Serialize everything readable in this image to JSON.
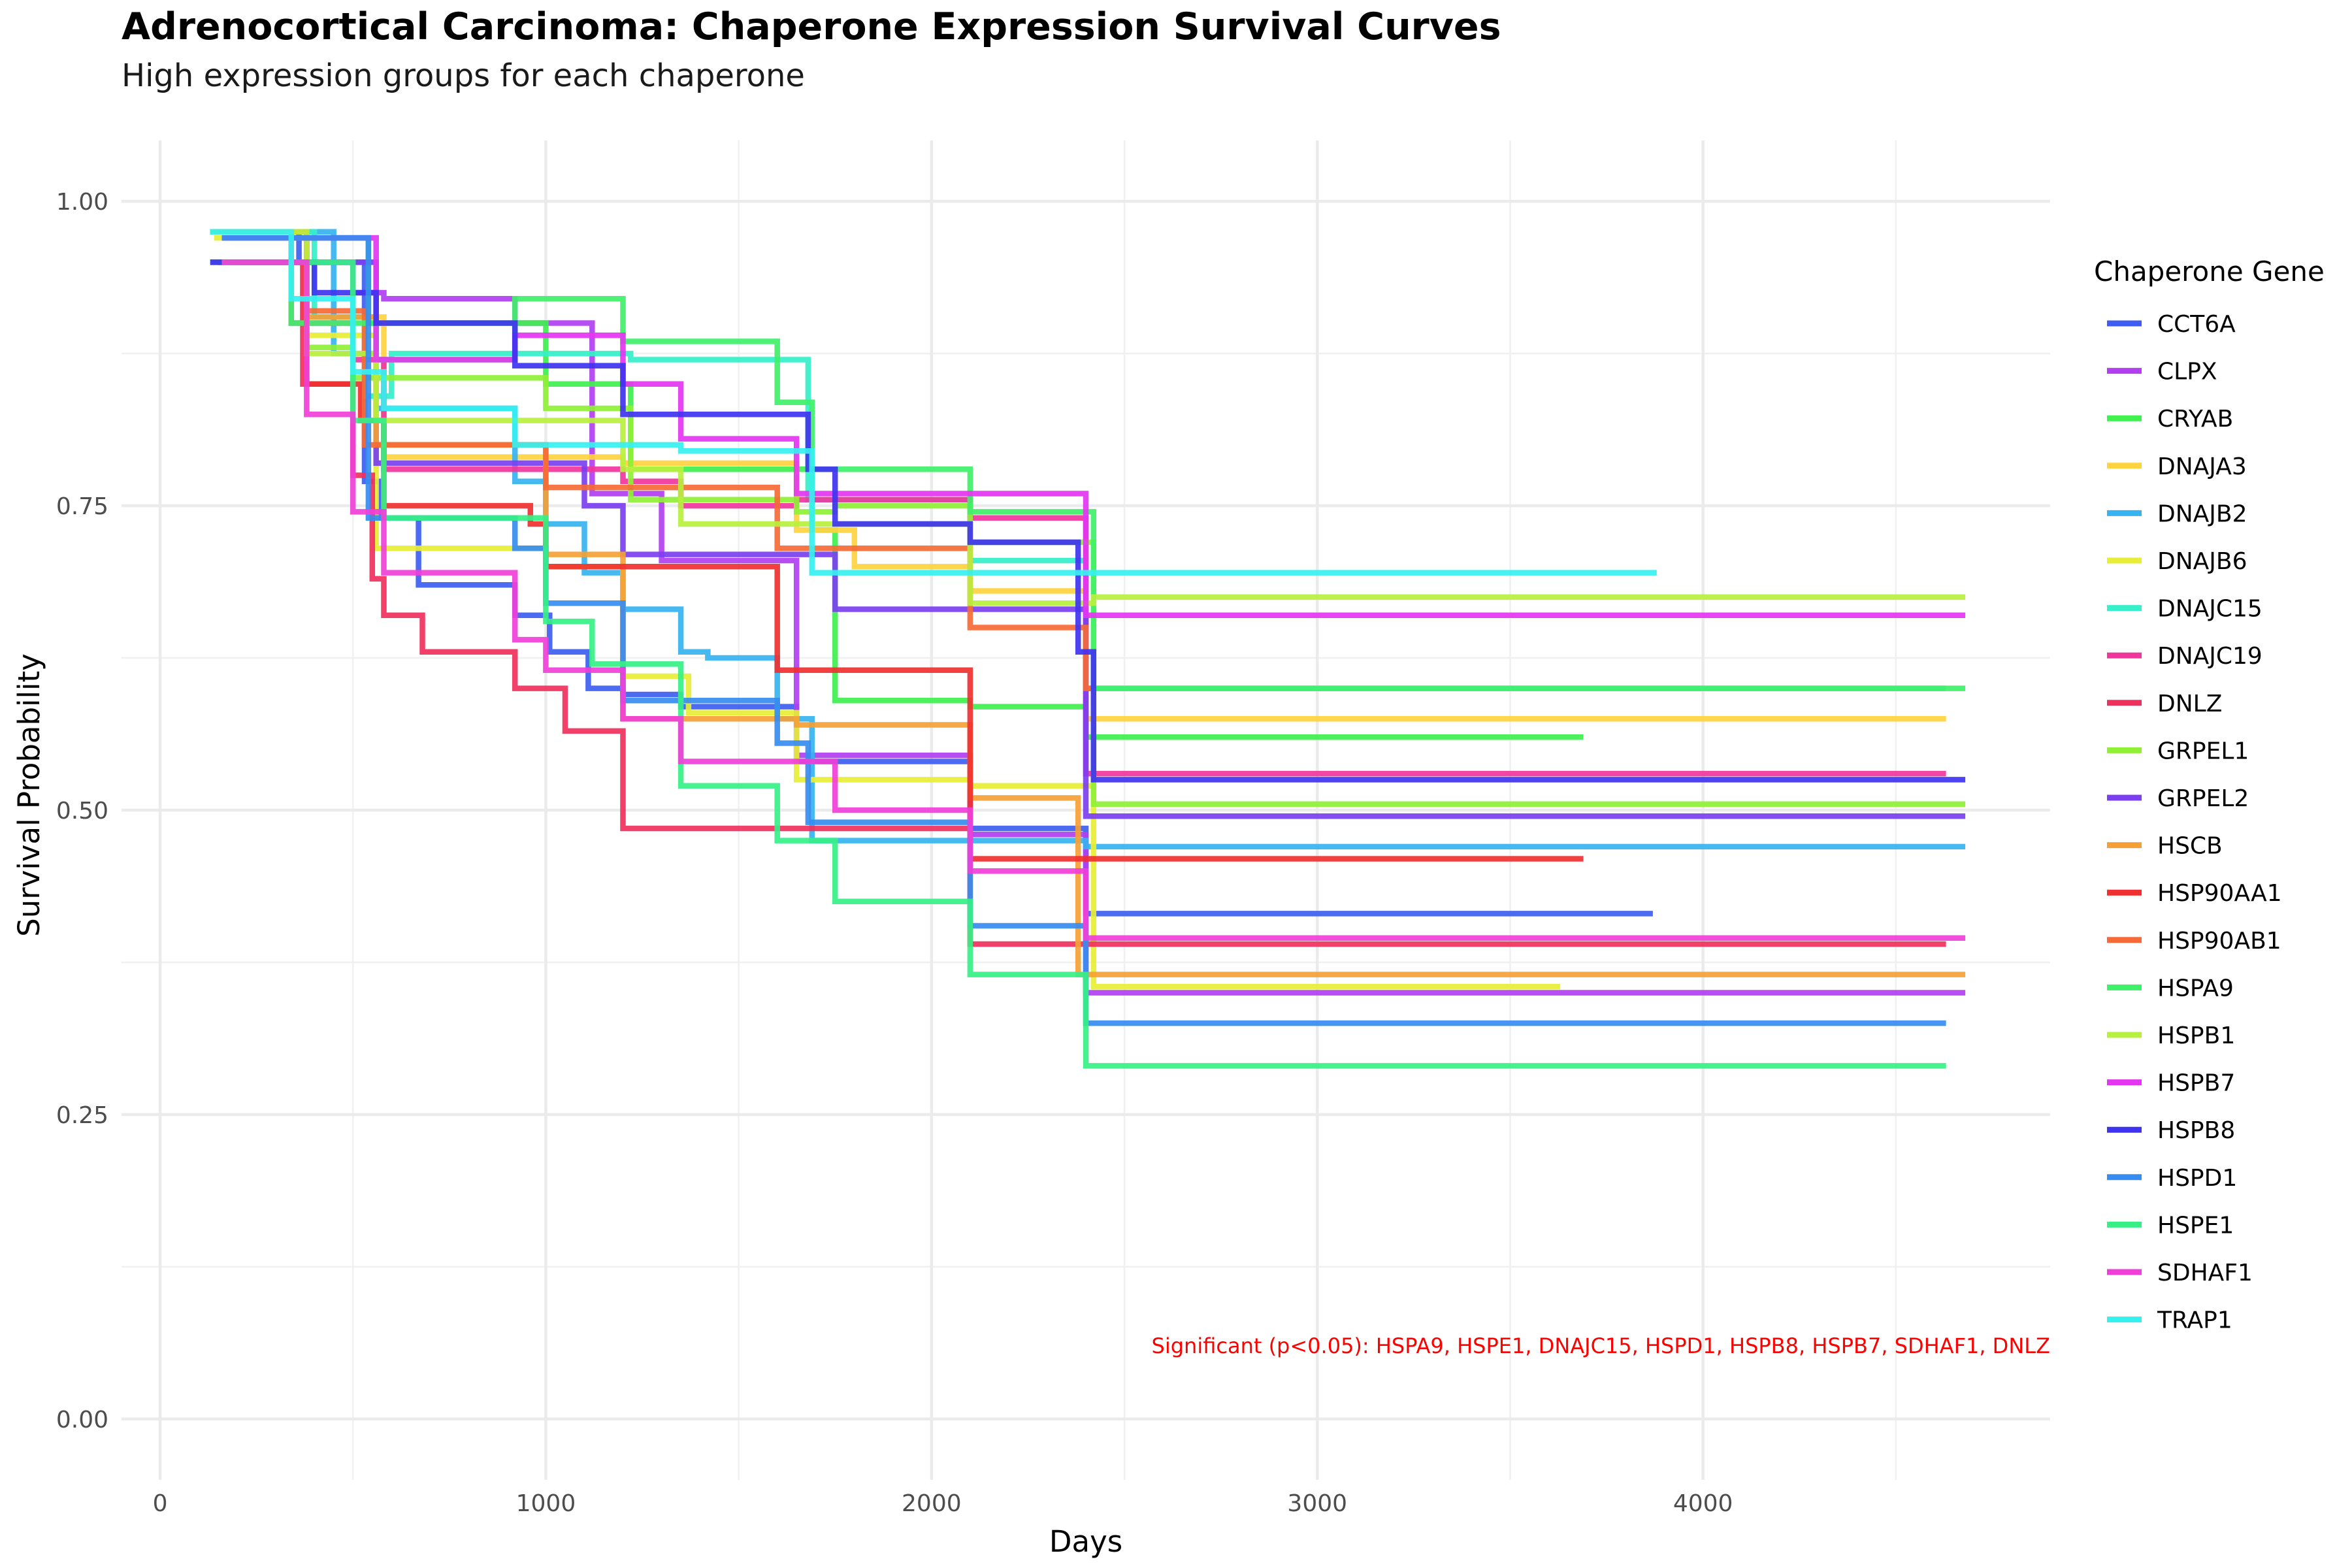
{
  "chart_data": {
    "type": "line",
    "step": true,
    "title": "Adrenocortical Carcinoma: Chaperone Expression Survival Curves",
    "subtitle": "High expression groups for each chaperone",
    "xlabel": "Days",
    "ylabel": "Survival Probability",
    "xlim": [
      -100,
      4900
    ],
    "ylim": [
      -0.05,
      1.05
    ],
    "x_ticks": [
      0,
      1000,
      2000,
      3000,
      4000
    ],
    "x_tick_labels": [
      "0",
      "1000",
      "2000",
      "3000",
      "4000"
    ],
    "y_ticks": [
      0,
      0.25,
      0.5,
      0.75,
      1
    ],
    "y_tick_labels": [
      "0.00",
      "0.25",
      "0.50",
      "0.75",
      "1.00"
    ],
    "grid": true,
    "legend": {
      "title": "Chaperone Gene",
      "position": "right"
    },
    "annotation": {
      "text": "Significant (p<0.05): HSPA9, HSPE1, DNAJC15, HSPD1, HSPB8, HSPB7, SDHAF1, DNLZ",
      "color": "#ff0000"
    },
    "series": [
      {
        "name": "CCT6A",
        "color": "#3d5ef0",
        "x": [
          130,
          360,
          530,
          570,
          670,
          920,
          1010,
          1110,
          1200,
          1350,
          1650,
          2100,
          2400,
          3870
        ],
        "y": [
          0.975,
          0.95,
          0.77,
          0.74,
          0.685,
          0.66,
          0.63,
          0.6,
          0.595,
          0.585,
          0.54,
          0.485,
          0.415,
          0.415
        ]
      },
      {
        "name": "CLPX",
        "color": "#b13ff0",
        "x": [
          150,
          500,
          580,
          920,
          1120,
          1300,
          1650,
          2100,
          2400,
          4680
        ],
        "y": [
          0.95,
          0.925,
          0.92,
          0.9,
          0.76,
          0.705,
          0.545,
          0.48,
          0.35,
          0.35
        ]
      },
      {
        "name": "CRYAB",
        "color": "#3ff04f",
        "x": [
          160,
          540,
          1000,
          1220,
          1690,
          1750,
          2100,
          2400,
          3690
        ],
        "y": [
          0.97,
          0.9,
          0.85,
          0.78,
          0.73,
          0.59,
          0.585,
          0.56,
          0.56
        ]
      },
      {
        "name": "DNAJA3",
        "color": "#ffd23f",
        "x": [
          200,
          370,
          580,
          1200,
          1650,
          1800,
          2100,
          2400,
          4630
        ],
        "y": [
          0.95,
          0.905,
          0.79,
          0.785,
          0.73,
          0.7,
          0.68,
          0.575,
          0.575
        ]
      },
      {
        "name": "DNAJB2",
        "color": "#36b3f0",
        "x": [
          140,
          450,
          560,
          920,
          1000,
          1100,
          1200,
          1350,
          1420,
          1600,
          1690,
          2100,
          2400,
          4680
        ],
        "y": [
          0.975,
          0.875,
          0.83,
          0.77,
          0.735,
          0.695,
          0.665,
          0.63,
          0.625,
          0.575,
          0.475,
          0.475,
          0.47,
          0.47
        ]
      },
      {
        "name": "DNAJB6",
        "color": "#e8ee36",
        "x": [
          140,
          380,
          560,
          1000,
          1200,
          1370,
          1650,
          2100,
          2420,
          3630
        ],
        "y": [
          0.97,
          0.89,
          0.715,
          0.7,
          0.61,
          0.58,
          0.525,
          0.52,
          0.355,
          0.355
        ]
      },
      {
        "name": "DNAJC15",
        "color": "#35f0c9",
        "x": [
          130,
          400,
          530,
          600,
          1220,
          1680,
          2100,
          2400,
          4630
        ],
        "y": [
          0.975,
          0.905,
          0.84,
          0.875,
          0.87,
          0.755,
          0.705,
          0.6,
          0.6
        ]
      },
      {
        "name": "DNAJC19",
        "color": "#f0369d",
        "x": [
          150,
          340,
          500,
          580,
          1200,
          1350,
          1650,
          2100,
          2400,
          4630
        ],
        "y": [
          0.975,
          0.9,
          0.87,
          0.78,
          0.77,
          0.75,
          0.755,
          0.74,
          0.53,
          0.53
        ]
      },
      {
        "name": "DNLZ",
        "color": "#f0305c",
        "x": [
          150,
          370,
          500,
          550,
          580,
          680,
          920,
          1050,
          1200,
          2100,
          2400,
          4630
        ],
        "y": [
          0.95,
          0.85,
          0.775,
          0.69,
          0.66,
          0.63,
          0.6,
          0.565,
          0.485,
          0.39,
          0.39,
          0.39
        ]
      },
      {
        "name": "GRPEL1",
        "color": "#8ff036",
        "x": [
          150,
          380,
          500,
          1000,
          1220,
          1650,
          1750,
          2100,
          2420,
          4680
        ],
        "y": [
          0.975,
          0.88,
          0.855,
          0.83,
          0.755,
          0.745,
          0.75,
          0.72,
          0.505,
          0.505
        ]
      },
      {
        "name": "GRPEL2",
        "color": "#7b3ff0",
        "x": [
          130,
          560,
          1100,
          1200,
          1650,
          1750,
          2100,
          2400,
          4680
        ],
        "y": [
          0.95,
          0.785,
          0.75,
          0.71,
          0.71,
          0.665,
          0.665,
          0.495,
          0.495
        ]
      },
      {
        "name": "HSCB",
        "color": "#f59f36",
        "x": [
          150,
          380,
          560,
          1000,
          1200,
          1650,
          2100,
          2380,
          2400,
          4680
        ],
        "y": [
          0.975,
          0.905,
          0.8,
          0.71,
          0.575,
          0.57,
          0.51,
          0.365,
          0.365,
          0.365
        ]
      },
      {
        "name": "HSP90AA1",
        "color": "#f03030",
        "x": [
          200,
          380,
          520,
          580,
          960,
          1000,
          1600,
          2100,
          2400,
          3690
        ],
        "y": [
          0.95,
          0.85,
          0.82,
          0.75,
          0.735,
          0.7,
          0.615,
          0.46,
          0.46,
          0.46
        ]
      },
      {
        "name": "HSP90AB1",
        "color": "#f56a36",
        "x": [
          130,
          380,
          530,
          1000,
          1400,
          1600,
          2100,
          2400,
          2420
        ],
        "y": [
          0.975,
          0.91,
          0.8,
          0.765,
          0.765,
          0.715,
          0.65,
          0.6,
          0.6
        ]
      },
      {
        "name": "HSPA9",
        "color": "#3ff06a",
        "x": [
          130,
          340,
          560,
          920,
          1200,
          1600,
          1690,
          2100,
          2420,
          4680
        ],
        "y": [
          0.95,
          0.9,
          0.87,
          0.92,
          0.885,
          0.835,
          0.78,
          0.745,
          0.6,
          0.6
        ]
      },
      {
        "name": "HSPB1",
        "color": "#b8f03f",
        "x": [
          130,
          380,
          560,
          920,
          1200,
          1350,
          1650,
          2100,
          2420,
          4680
        ],
        "y": [
          0.975,
          0.875,
          0.82,
          0.82,
          0.78,
          0.735,
          0.735,
          0.67,
          0.675,
          0.675
        ]
      },
      {
        "name": "HSPB7",
        "color": "#e436f0",
        "x": [
          160,
          560,
          920,
          1200,
          1350,
          1650,
          2400,
          4680
        ],
        "y": [
          0.97,
          0.87,
          0.89,
          0.85,
          0.805,
          0.76,
          0.66,
          0.66
        ]
      },
      {
        "name": "HSPB8",
        "color": "#3f33f0",
        "x": [
          130,
          400,
          560,
          920,
          1200,
          1680,
          1750,
          2100,
          2380,
          2420,
          4680
        ],
        "y": [
          0.95,
          0.925,
          0.9,
          0.865,
          0.825,
          0.78,
          0.735,
          0.72,
          0.63,
          0.525,
          0.525
        ]
      },
      {
        "name": "HSPD1",
        "color": "#368cf0",
        "x": [
          160,
          540,
          920,
          1000,
          1200,
          1600,
          1680,
          2100,
          2400,
          4630
        ],
        "y": [
          0.97,
          0.74,
          0.715,
          0.67,
          0.59,
          0.555,
          0.49,
          0.405,
          0.325,
          0.325
        ]
      },
      {
        "name": "HSPE1",
        "color": "#36f086",
        "x": [
          160,
          500,
          580,
          1000,
          1120,
          1350,
          1600,
          1750,
          2100,
          2400,
          4630
        ],
        "y": [
          0.95,
          0.82,
          0.74,
          0.655,
          0.62,
          0.52,
          0.475,
          0.425,
          0.365,
          0.29,
          0.29
        ]
      },
      {
        "name": "SDHAF1",
        "color": "#f03fd8",
        "x": [
          160,
          380,
          500,
          580,
          920,
          1000,
          1200,
          1350,
          1650,
          1750,
          2100,
          2400,
          4680
        ],
        "y": [
          0.95,
          0.825,
          0.745,
          0.695,
          0.64,
          0.615,
          0.575,
          0.54,
          0.54,
          0.5,
          0.45,
          0.395,
          0.395
        ]
      },
      {
        "name": "TRAP1",
        "color": "#36f0f0",
        "x": [
          130,
          340,
          500,
          580,
          920,
          1350,
          1690,
          2400,
          3880
        ],
        "y": [
          0.975,
          0.92,
          0.86,
          0.83,
          0.8,
          0.795,
          0.695,
          0.695,
          0.695
        ]
      }
    ]
  }
}
